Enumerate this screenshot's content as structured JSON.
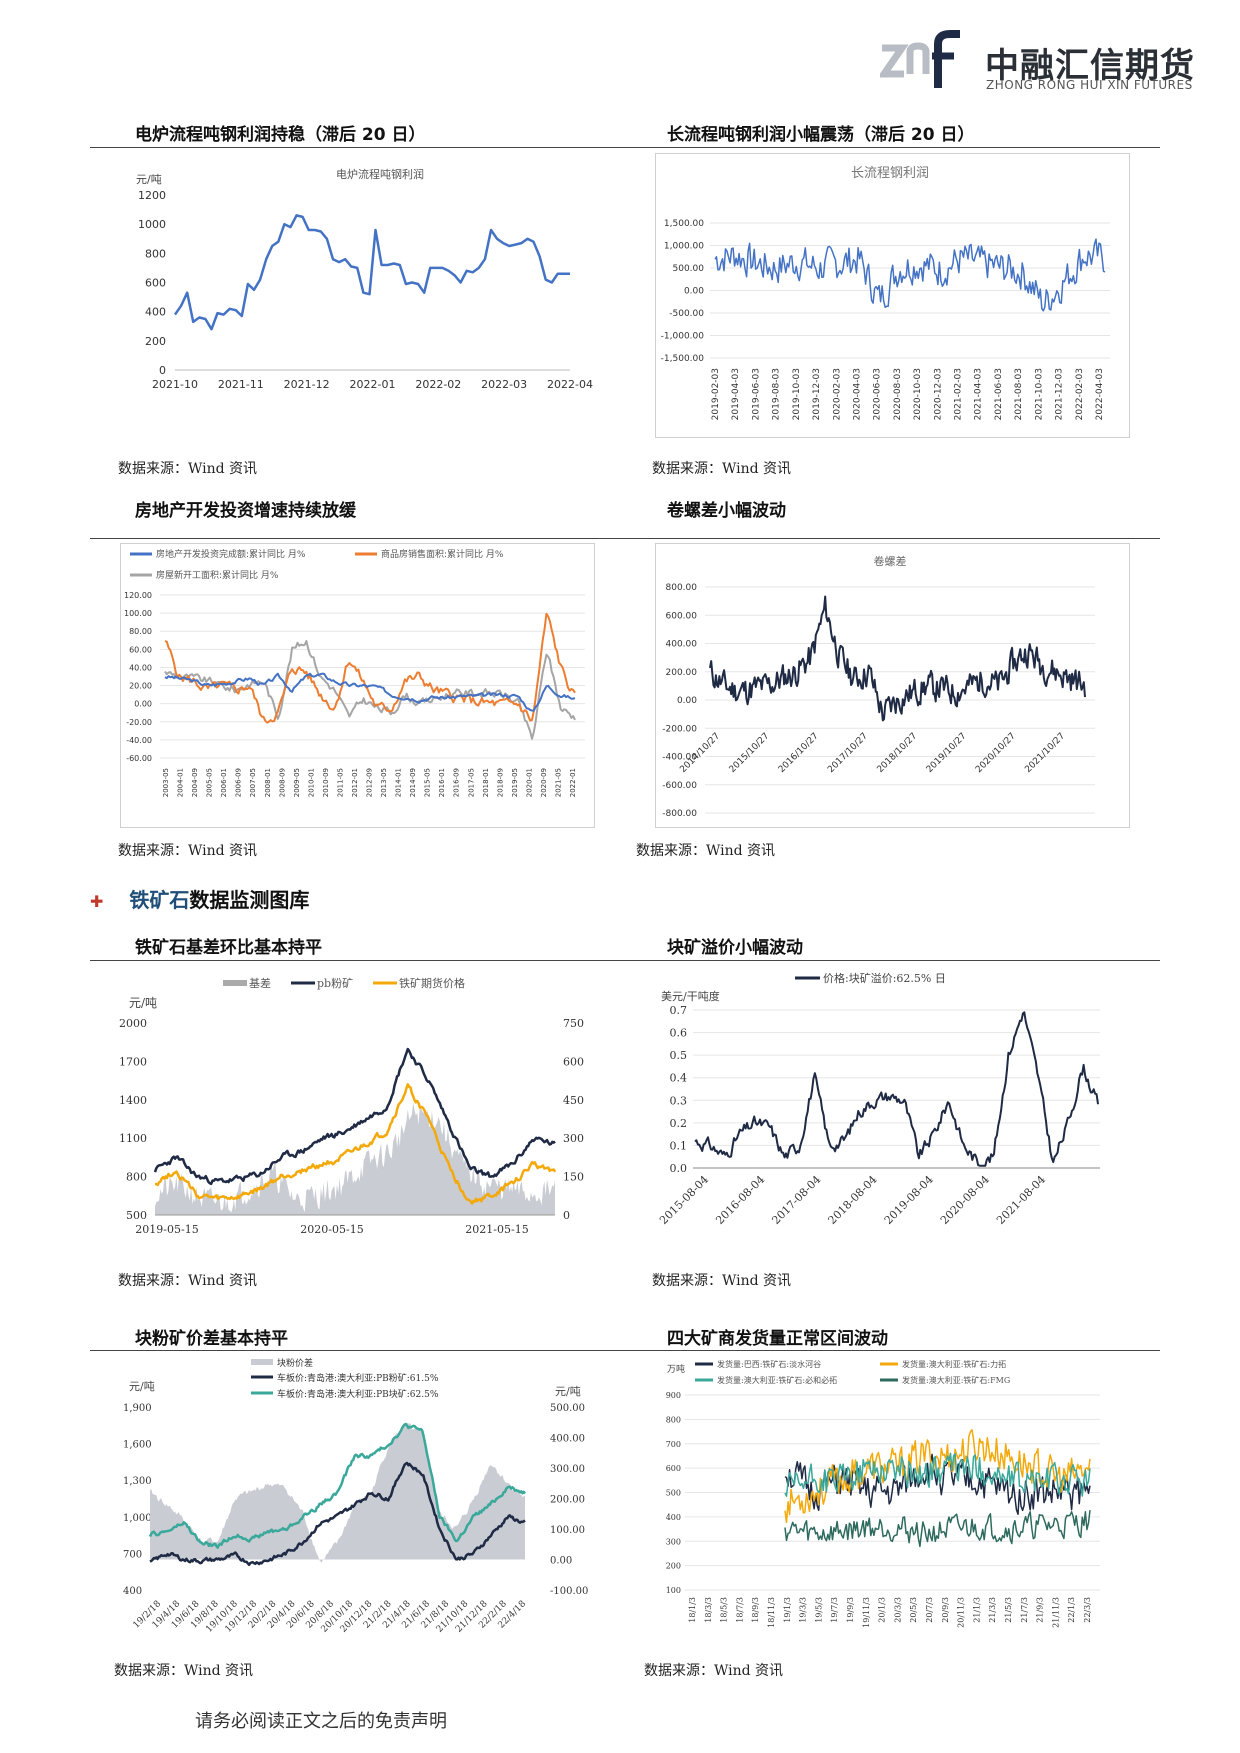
{
  "header": {
    "logo_mark": "znf",
    "logo_cn": "中融汇信期货",
    "logo_en": "ZHONG RONG HUI XIN FUTURES"
  },
  "titles": {
    "c1": "电炉流程吨钢利润持稳（滞后 20 日）",
    "c2": "长流程吨钢利润小幅震荡（滞后 20 日）",
    "c3": "房地产开发投资增速持续放缓",
    "c4": "卷螺差小幅波动",
    "c5": "铁矿石基差环比基本持平",
    "c6": "块矿溢价小幅波动",
    "c7": "块粉矿价差基本持平",
    "c8": "四大矿商发货量正常区间波动"
  },
  "section": {
    "ore": "铁矿石",
    "rest": "数据监测图库"
  },
  "source_text": "数据来源：Wind 资讯",
  "footer": "请务必阅读正文之后的免责声明",
  "colors": {
    "blue": "#4472c4",
    "orange": "#ed7d31",
    "gray": "#a5a5a5",
    "navy": "#1f2a44",
    "teal": "#3aa89a",
    "gold": "#f4a90b",
    "darkgreen": "#2e6b5e",
    "lightgray": "#c9ccd3"
  },
  "chart_data": [
    {
      "id": "c1",
      "type": "line",
      "title": "电炉流程吨钢利润",
      "ylabel": "元/吨",
      "yticks": [
        "1200",
        "1000",
        "800",
        "600",
        "400",
        "200",
        "0"
      ],
      "ylim": [
        0,
        1200
      ],
      "xticks": [
        "2021-10",
        "2021-11",
        "2021-12",
        "2022-01",
        "2022-02",
        "2022-03",
        "2022-04"
      ],
      "series": [
        {
          "values": [
            380,
            440,
            530,
            330,
            360,
            350,
            280,
            390,
            380,
            420,
            410,
            370,
            590,
            550,
            620,
            760,
            850,
            880,
            1000,
            980,
            1060,
            1050,
            960,
            960,
            950,
            900,
            760,
            740,
            760,
            710,
            700,
            530,
            520,
            960,
            720,
            720,
            730,
            720,
            590,
            600,
            590,
            530,
            700,
            700,
            700,
            680,
            650,
            600,
            680,
            670,
            700,
            760,
            960,
            900,
            870,
            850,
            860,
            870,
            900,
            880,
            780,
            620,
            600,
            660,
            660,
            660
          ]
        }
      ]
    },
    {
      "id": "c2",
      "type": "line",
      "title": "长流程钢利润",
      "yticks": [
        "1,500.00",
        "1,000.00",
        "500.00",
        "0.00",
        "-500.00",
        "-1,000.00",
        "-1,500.00"
      ],
      "ylim": [
        -1500,
        1500
      ],
      "xticks": [
        "2019-02-03",
        "2019-04-03",
        "2019-06-03",
        "2019-08-03",
        "2019-10-03",
        "2019-12-03",
        "2020-02-03",
        "2020-04-03",
        "2020-06-03",
        "2020-08-03",
        "2020-10-03",
        "2020-12-03",
        "2021-02-03",
        "2021-04-03",
        "2021-06-03",
        "2021-08-03",
        "2021-10-03",
        "2021-12-03",
        "2022-02-03",
        "2022-04-03"
      ]
    },
    {
      "id": "c3",
      "type": "line",
      "legend": [
        "房地产开发投资完成额:累计同比 月%",
        "商品房销售面积:累计同比 月%",
        "房屋新开工面积:累计同比 月%"
      ],
      "yticks": [
        "120.00",
        "100.00",
        "80.00",
        "60.00",
        "40.00",
        "20.00",
        "0.00",
        "-20.00",
        "-40.00",
        "-60.00"
      ],
      "ylim": [
        -60,
        120
      ],
      "xticks": [
        "2003-05",
        "2004-01",
        "2004-09",
        "2005-05",
        "2006-01",
        "2006-09",
        "2007-05",
        "2008-01",
        "2008-09",
        "2009-05",
        "2010-01",
        "2010-09",
        "2011-05",
        "2012-01",
        "2012-09",
        "2013-05",
        "2014-01",
        "2014-09",
        "2015-05",
        "2016-01",
        "2016-09",
        "2017-05",
        "2018-01",
        "2018-09",
        "2019-05",
        "2020-01",
        "2020-09",
        "2021-05",
        "2022-01"
      ]
    },
    {
      "id": "c4",
      "type": "line",
      "title": "卷螺差",
      "yticks": [
        "800.00",
        "600.00",
        "400.00",
        "200.00",
        "0.00",
        "-200.00",
        "-400.00",
        "-600.00",
        "-800.00"
      ],
      "ylim": [
        -800,
        800
      ],
      "xticks": [
        "2014/10/27",
        "2015/10/27",
        "2016/10/27",
        "2017/10/27",
        "2018/10/27",
        "2019/10/27",
        "2020/10/27",
        "2021/10/27"
      ]
    },
    {
      "id": "c5",
      "type": "line",
      "legend": [
        "基差",
        "pb粉矿",
        "铁矿期货价格"
      ],
      "ylabel": "元/吨",
      "yticks_left": [
        "2000",
        "1700",
        "1400",
        "1100",
        "800",
        "500"
      ],
      "ylim_left": [
        500,
        2000
      ],
      "yticks_right": [
        "750",
        "600",
        "450",
        "300",
        "150",
        "0"
      ],
      "ylim_right": [
        0,
        750
      ],
      "xticks": [
        "2019-05-15",
        "2020-05-15",
        "2021-05-15"
      ]
    },
    {
      "id": "c6",
      "type": "line",
      "legend": [
        "价格:块矿溢价:62.5% 日"
      ],
      "ylabel": "美元/干吨度",
      "yticks": [
        "0.7",
        "0.6",
        "0.5",
        "0.4",
        "0.3",
        "0.2",
        "0.1",
        "0.0"
      ],
      "ylim": [
        0,
        0.7
      ],
      "xticks": [
        "2015-08-04",
        "2016-08-04",
        "2017-08-04",
        "2018-08-04",
        "2019-08-04",
        "2020-08-04",
        "2021-08-04"
      ]
    },
    {
      "id": "c7",
      "type": "line",
      "legend": [
        "块粉价差",
        "车板价:青岛港:澳大利亚:PB粉矿:61.5%",
        "车板价:青岛港:澳大利亚:PB块矿:62.5%"
      ],
      "ylabel_left": "元/吨",
      "ylabel_right": "元/吨",
      "yticks_left": [
        "1,900",
        "1,600",
        "1,300",
        "1,000",
        "700",
        "400"
      ],
      "ylim_left": [
        400,
        1900
      ],
      "yticks_right": [
        "500.00",
        "400.00",
        "300.00",
        "200.00",
        "100.00",
        "0.00",
        "-100.00"
      ],
      "ylim_right": [
        -100,
        500
      ],
      "xticks": [
        "19/2/18",
        "19/4/18",
        "19/6/18",
        "19/8/18",
        "19/10/18",
        "19/12/18",
        "20/2/18",
        "20/4/18",
        "20/6/18",
        "20/8/18",
        "20/10/18",
        "20/12/18",
        "21/2/18",
        "21/4/18",
        "21/6/18",
        "21/8/18",
        "21/10/18",
        "21/12/18",
        "22/2/18",
        "22/4/18"
      ]
    },
    {
      "id": "c8",
      "type": "line",
      "ylabel": "万吨",
      "legend": [
        "发货量:巴西:铁矿石:淡水河谷",
        "发货量:澳大利亚:铁矿石:力拓",
        "发货量:澳大利亚:铁矿石:必和必拓",
        "发货量:澳大利亚:铁矿石:FMG"
      ],
      "yticks": [
        "900",
        "800",
        "700",
        "600",
        "500",
        "400",
        "300",
        "200",
        "100"
      ],
      "ylim": [
        100,
        900
      ],
      "xticks": [
        "18/1/3",
        "18/3/3",
        "18/5/3",
        "18/7/3",
        "18/9/3",
        "18/11/3",
        "19/1/3",
        "19/3/3",
        "19/5/3",
        "19/7/3",
        "19/9/3",
        "19/11/3",
        "20/1/3",
        "20/3/3",
        "20/5/3",
        "20/7/3",
        "20/9/3",
        "20/11/3",
        "21/1/3",
        "21/3/3",
        "21/5/3",
        "21/7/3",
        "21/9/3",
        "21/11/3",
        "22/1/3",
        "22/3/3"
      ]
    }
  ]
}
